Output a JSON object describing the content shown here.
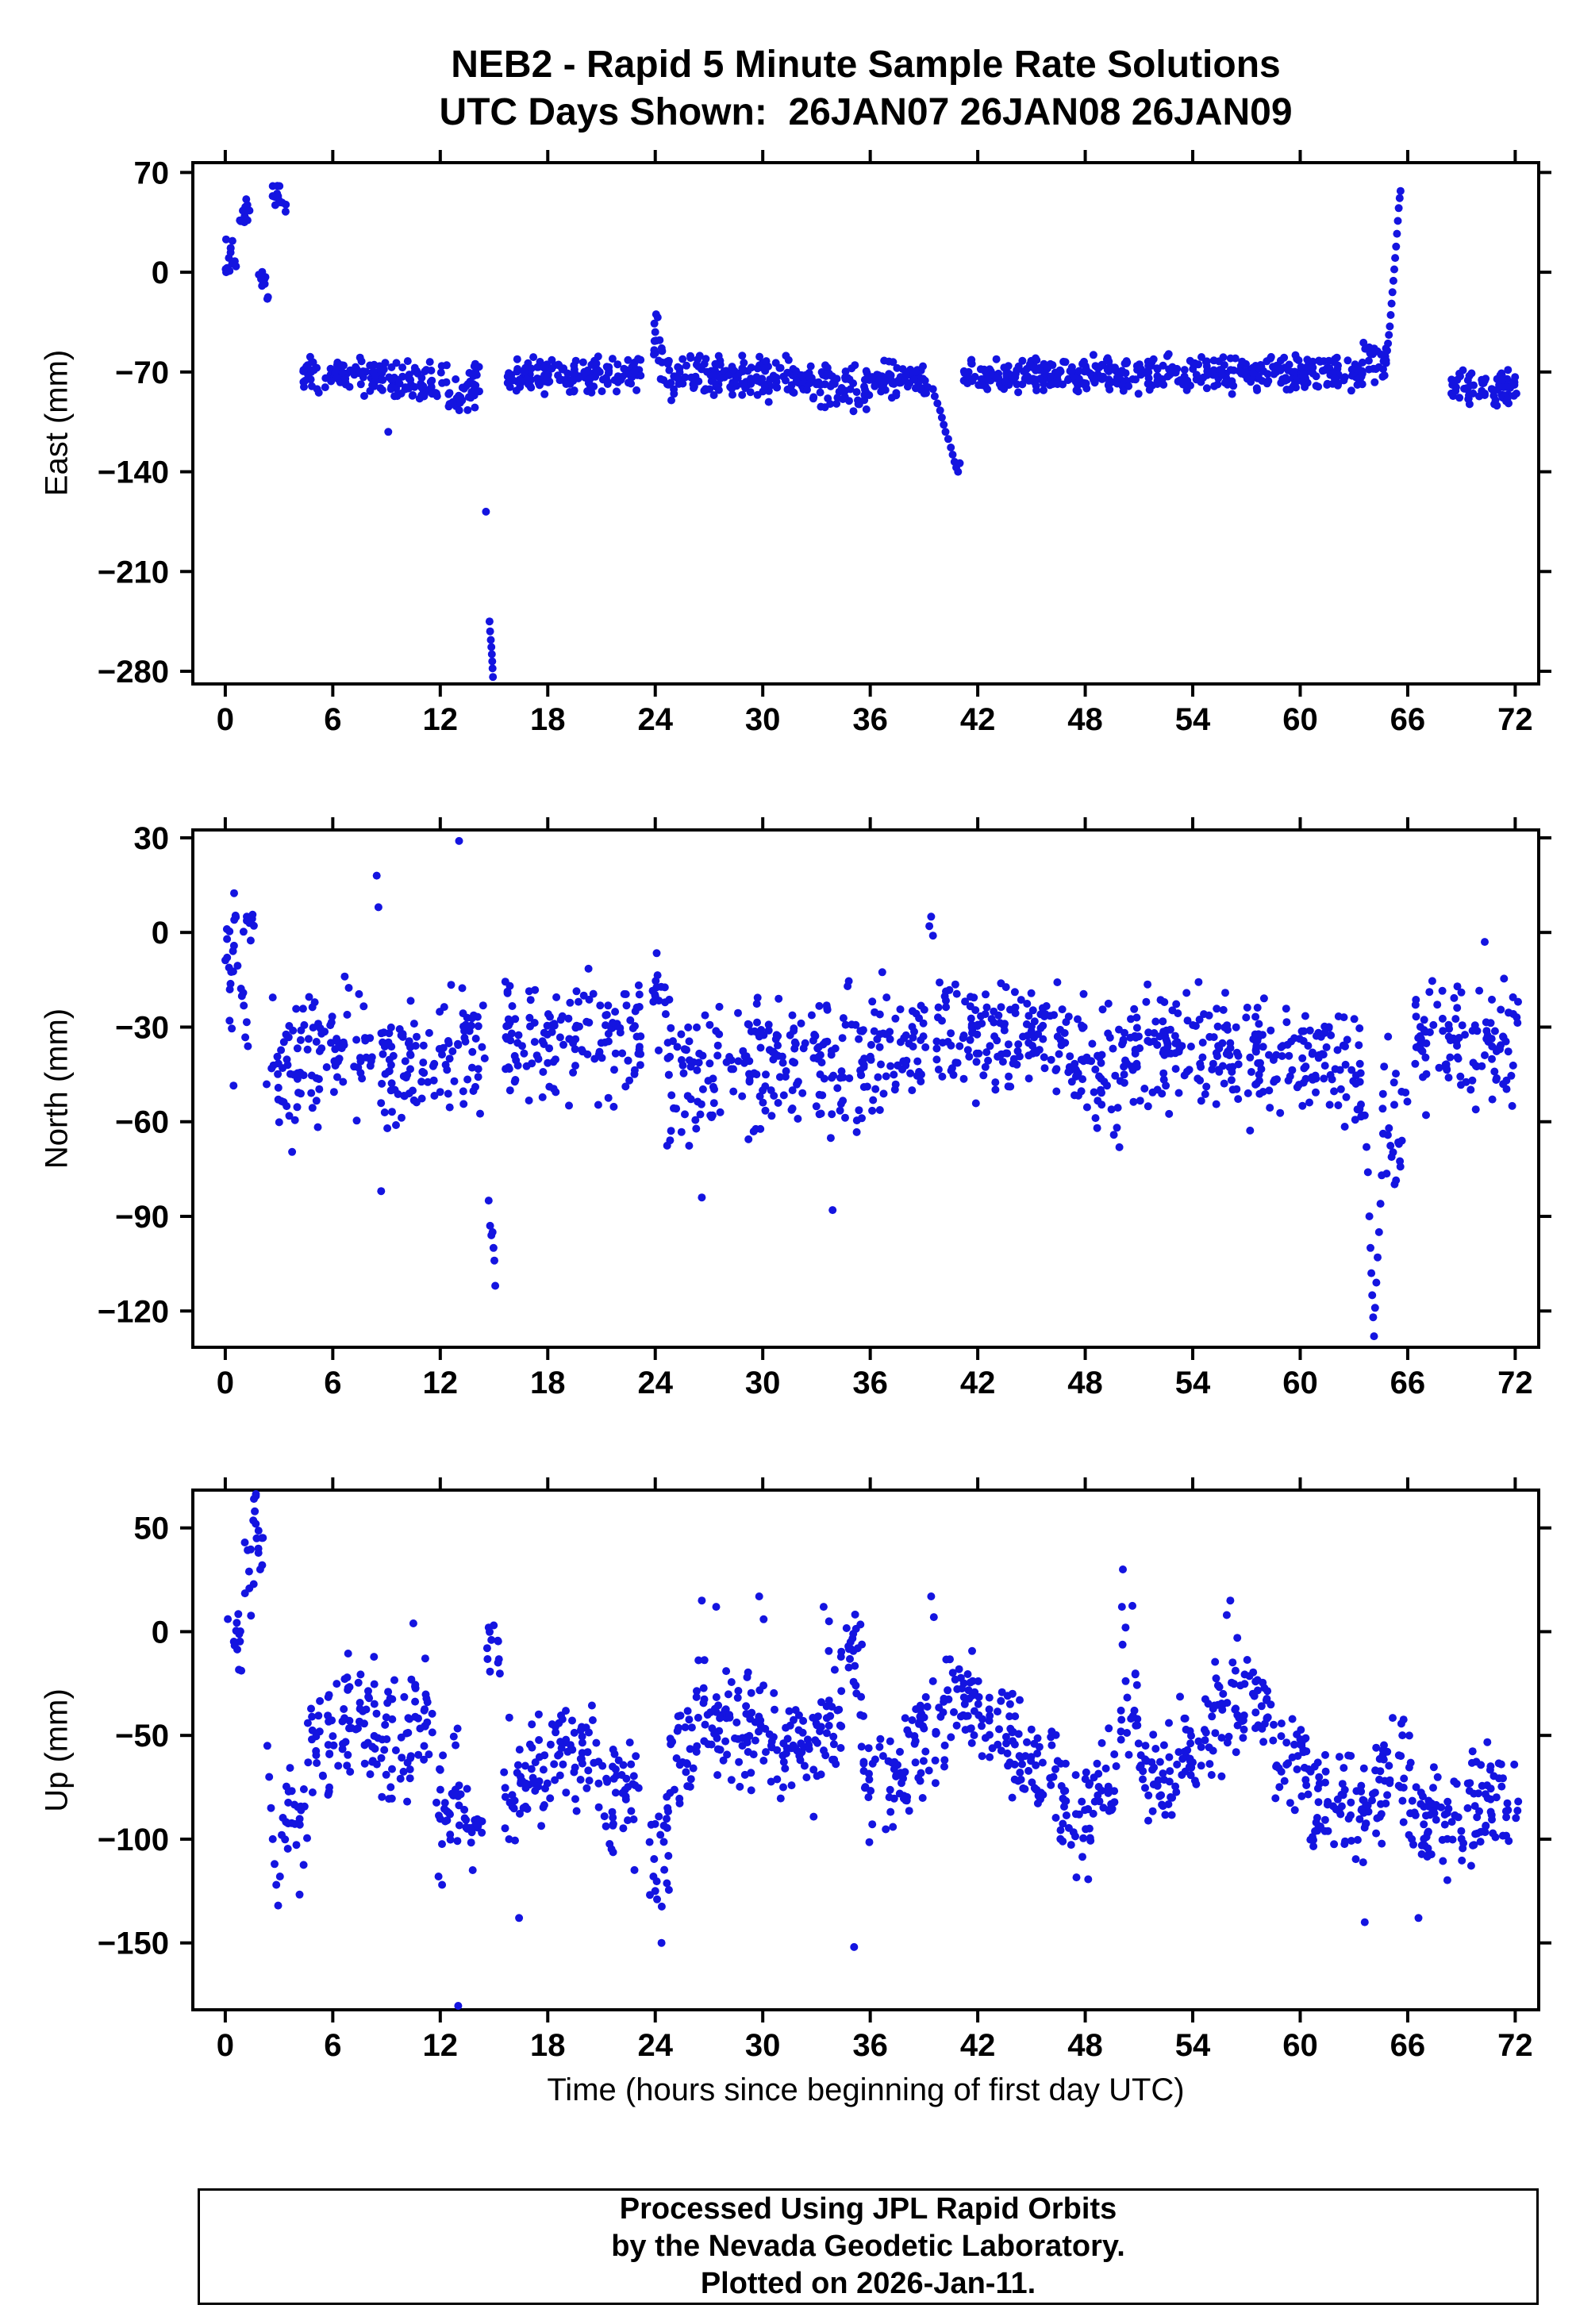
{
  "header": {
    "title_line1": "NEB2 - Rapid 5 Minute Sample Rate Solutions",
    "title_line2": "UTC Days Shown:  26JAN07 26JAN08 26JAN09"
  },
  "footer": {
    "line1": "Processed Using JPL Rapid Orbits",
    "line2": "by the Nevada Geodetic Laboratory.",
    "line3": "Plotted on 2026-Jan-11."
  },
  "chart_data": {
    "type": "scatter",
    "title": "NEB2 - Rapid 5 Minute Sample Rate Solutions",
    "subtitle": "UTC Days Shown:  26JAN07 26JAN08 26JAN09",
    "xlabel": "Time (hours since beginning of first day UTC)",
    "x_ticks": [
      0,
      6,
      12,
      18,
      24,
      30,
      36,
      42,
      48,
      54,
      60,
      66,
      72
    ],
    "xlim": [
      -1.9,
      73.4
    ],
    "grid": false,
    "legend": false,
    "point_color": "#1414E0",
    "frame_color": "#000000",
    "marker_radius_px": 5,
    "panels": [
      {
        "id": "east",
        "ylabel": "East (mm)",
        "ylim": [
          -290,
          78
        ],
        "y_ticks": [
          70,
          0,
          -70,
          -140,
          -210,
          -280
        ],
        "segments": [
          [
            0.0,
            0.6,
            8,
            8,
            7
          ],
          [
            0.8,
            1.4,
            12,
            40,
            6
          ],
          [
            1.8,
            2.4,
            10,
            -8,
            6
          ],
          [
            2.4,
            3.4,
            14,
            55,
            8
          ],
          [
            4.3,
            9.0,
            90,
            -72,
            6
          ],
          [
            9.0,
            12.3,
            60,
            -74,
            7
          ],
          [
            12.3,
            14.3,
            40,
            -84,
            9
          ],
          [
            15.6,
            23.2,
            140,
            -72,
            6
          ],
          [
            23.9,
            24.4,
            12,
            -52,
            13
          ],
          [
            24.4,
            28.0,
            70,
            -73,
            7
          ],
          [
            28.0,
            33.0,
            95,
            -76,
            7
          ],
          [
            33.0,
            36.0,
            60,
            -80,
            8
          ],
          [
            36.0,
            39.3,
            65,
            -75,
            6
          ],
          [
            41.2,
            47.0,
            110,
            -73,
            6
          ],
          [
            47.0,
            54.0,
            130,
            -72,
            6
          ],
          [
            54.0,
            60.0,
            115,
            -70,
            6
          ],
          [
            60.0,
            63.5,
            70,
            -71,
            6
          ],
          [
            63.5,
            64.8,
            26,
            -62,
            7
          ],
          [
            68.3,
            72.2,
            75,
            -80,
            6
          ]
        ],
        "points": [
          [
            0.05,
            0
          ],
          [
            0.1,
            3
          ],
          [
            0.2,
            10
          ],
          [
            0.3,
            17
          ],
          [
            0.4,
            22
          ],
          [
            9.1,
            -112
          ],
          [
            14.55,
            -168
          ],
          [
            14.75,
            -245
          ],
          [
            14.78,
            -252
          ],
          [
            14.82,
            -258
          ],
          [
            14.85,
            -263
          ],
          [
            14.88,
            -268
          ],
          [
            14.9,
            -273
          ],
          [
            14.92,
            -278
          ],
          [
            14.94,
            -284
          ],
          [
            23.95,
            -36
          ],
          [
            24.0,
            -42
          ],
          [
            24.05,
            -48
          ],
          [
            39.5,
            -82
          ],
          [
            39.6,
            -87
          ],
          [
            39.75,
            -92
          ],
          [
            39.9,
            -97
          ],
          [
            40.0,
            -102
          ],
          [
            40.1,
            -107
          ],
          [
            40.2,
            -112
          ],
          [
            40.35,
            -117
          ],
          [
            40.5,
            -123
          ],
          [
            40.6,
            -128
          ],
          [
            40.7,
            -133
          ],
          [
            40.8,
            -137
          ],
          [
            40.9,
            -140
          ],
          [
            41.0,
            -134
          ],
          [
            64.85,
            -55
          ],
          [
            64.9,
            -50
          ],
          [
            64.95,
            -44
          ],
          [
            65.0,
            -38
          ],
          [
            65.05,
            -30
          ],
          [
            65.1,
            -22
          ],
          [
            65.15,
            -14
          ],
          [
            65.2,
            -6
          ],
          [
            65.25,
            2
          ],
          [
            65.3,
            10
          ],
          [
            65.35,
            18
          ],
          [
            65.4,
            27
          ],
          [
            65.45,
            36
          ],
          [
            65.5,
            45
          ],
          [
            65.55,
            52
          ],
          [
            65.6,
            57
          ]
        ]
      },
      {
        "id": "north",
        "ylabel": "North (mm)",
        "ylim": [
          -132,
          33
        ],
        "y_ticks": [
          30,
          0,
          -30,
          -60,
          -90,
          -120
        ],
        "segments": [
          [
            0.0,
            0.6,
            10,
            -5,
            8
          ],
          [
            0.2,
            1.4,
            16,
            -22,
            14
          ],
          [
            1.0,
            1.6,
            6,
            2,
            3
          ],
          [
            2.2,
            4.2,
            34,
            -46,
            12
          ],
          [
            4.2,
            8.2,
            70,
            -38,
            9
          ],
          [
            8.6,
            12.6,
            75,
            -42,
            9
          ],
          [
            12.6,
            14.5,
            34,
            -36,
            9
          ],
          [
            15.5,
            19.0,
            65,
            -34,
            9
          ],
          [
            19.0,
            23.2,
            75,
            -33,
            9
          ],
          [
            23.8,
            24.6,
            14,
            -20,
            8
          ],
          [
            24.6,
            27.2,
            50,
            -46,
            11
          ],
          [
            27.2,
            33.2,
            110,
            -42,
            10
          ],
          [
            33.2,
            36.0,
            52,
            -42,
            12
          ],
          [
            36.0,
            39.2,
            60,
            -38,
            10
          ],
          [
            39.6,
            43.0,
            65,
            -33,
            9
          ],
          [
            43.0,
            47.0,
            75,
            -34,
            9
          ],
          [
            47.0,
            52.0,
            95,
            -42,
            11
          ],
          [
            52.0,
            57.0,
            95,
            -38,
            9
          ],
          [
            57.0,
            62.0,
            95,
            -40,
            9
          ],
          [
            62.0,
            63.5,
            28,
            -46,
            10
          ],
          [
            64.6,
            66.0,
            24,
            -60,
            12
          ],
          [
            66.4,
            69.5,
            55,
            -34,
            9
          ],
          [
            69.5,
            72.2,
            50,
            -36,
            9
          ]
        ],
        "points": [
          [
            0.5,
            4
          ],
          [
            1.2,
            5
          ],
          [
            1.35,
            3
          ],
          [
            8.45,
            18
          ],
          [
            8.55,
            8
          ],
          [
            8.7,
            -82
          ],
          [
            13.05,
            29
          ],
          [
            14.7,
            -85
          ],
          [
            14.78,
            -93
          ],
          [
            14.85,
            -96
          ],
          [
            14.92,
            -95
          ],
          [
            14.97,
            -100
          ],
          [
            15.02,
            -104
          ],
          [
            15.07,
            -112
          ],
          [
            26.6,
            -84
          ],
          [
            33.9,
            -88
          ],
          [
            39.3,
            2
          ],
          [
            39.4,
            5
          ],
          [
            39.5,
            -1
          ],
          [
            63.6,
            -58
          ],
          [
            63.7,
            -68
          ],
          [
            63.78,
            -76
          ],
          [
            63.86,
            -90
          ],
          [
            63.92,
            -100
          ],
          [
            63.97,
            -108
          ],
          [
            64.02,
            -115
          ],
          [
            64.07,
            -122
          ],
          [
            64.12,
            -128
          ],
          [
            64.18,
            -119
          ],
          [
            64.25,
            -111
          ],
          [
            64.32,
            -103
          ],
          [
            64.4,
            -95
          ],
          [
            64.48,
            -86
          ],
          [
            64.55,
            -77
          ],
          [
            70.3,
            -3
          ]
        ]
      },
      {
        "id": "up",
        "ylabel": "Up (mm)",
        "ylim": [
          -183,
          69
        ],
        "y_ticks": [
          50,
          0,
          -50,
          -100,
          -150
        ],
        "segments": [
          [
            0.1,
            0.9,
            12,
            -5,
            9
          ],
          [
            0.9,
            1.6,
            8,
            20,
            10
          ],
          [
            1.5,
            2.1,
            8,
            48,
            12
          ],
          [
            3.2,
            4.6,
            24,
            -95,
            14
          ],
          [
            4.6,
            6.2,
            30,
            -52,
            12
          ],
          [
            6.2,
            8.4,
            45,
            -42,
            14
          ],
          [
            8.4,
            10.4,
            38,
            -55,
            14
          ],
          [
            10.4,
            11.6,
            22,
            -35,
            15
          ],
          [
            11.6,
            13.4,
            32,
            -85,
            14
          ],
          [
            13.4,
            14.4,
            18,
            -95,
            10
          ],
          [
            14.6,
            15.4,
            10,
            -12,
            10
          ],
          [
            15.4,
            18.2,
            50,
            -75,
            14
          ],
          [
            18.2,
            21.0,
            50,
            -60,
            12
          ],
          [
            21.0,
            23.2,
            40,
            -80,
            14
          ],
          [
            23.6,
            24.8,
            22,
            -105,
            16
          ],
          [
            24.8,
            26.2,
            26,
            -60,
            14
          ],
          [
            26.2,
            28.4,
            42,
            -42,
            14
          ],
          [
            28.4,
            30.4,
            38,
            -48,
            14
          ],
          [
            30.4,
            32.4,
            38,
            -58,
            13
          ],
          [
            32.4,
            34.2,
            34,
            -48,
            16
          ],
          [
            34.2,
            35.6,
            26,
            -25,
            14
          ],
          [
            35.6,
            38.2,
            48,
            -72,
            14
          ],
          [
            38.2,
            40.2,
            38,
            -52,
            14
          ],
          [
            40.2,
            42.2,
            38,
            -35,
            12
          ],
          [
            42.2,
            44.4,
            40,
            -52,
            12
          ],
          [
            44.4,
            46.4,
            38,
            -65,
            13
          ],
          [
            46.4,
            48.4,
            38,
            -90,
            13
          ],
          [
            48.4,
            49.8,
            26,
            -72,
            13
          ],
          [
            49.8,
            51.0,
            20,
            -35,
            18
          ],
          [
            51.0,
            53.2,
            40,
            -70,
            13
          ],
          [
            53.2,
            55.2,
            36,
            -55,
            12
          ],
          [
            55.2,
            57.4,
            40,
            -35,
            13
          ],
          [
            57.4,
            58.6,
            22,
            -38,
            10
          ],
          [
            58.6,
            60.4,
            34,
            -62,
            13
          ],
          [
            60.4,
            62.4,
            38,
            -80,
            13
          ],
          [
            62.4,
            64.2,
            34,
            -88,
            14
          ],
          [
            64.2,
            66.2,
            38,
            -70,
            14
          ],
          [
            66.2,
            69.2,
            56,
            -92,
            13
          ],
          [
            69.2,
            72.2,
            56,
            -85,
            12
          ]
        ],
        "points": [
          [
            1.6,
            64
          ],
          [
            1.65,
            58
          ],
          [
            1.7,
            52
          ],
          [
            1.75,
            45
          ],
          [
            1.85,
            38
          ],
          [
            1.95,
            30
          ],
          [
            2.35,
            -55
          ],
          [
            2.45,
            -70
          ],
          [
            2.55,
            -85
          ],
          [
            2.65,
            -100
          ],
          [
            2.75,
            -112
          ],
          [
            2.85,
            -122
          ],
          [
            2.95,
            -132
          ],
          [
            3.05,
            -118
          ],
          [
            3.15,
            -98
          ],
          [
            10.5,
            4
          ],
          [
            11.9,
            -118
          ],
          [
            12.1,
            -122
          ],
          [
            13.0,
            -183
          ],
          [
            14.7,
            2
          ],
          [
            14.85,
            -4
          ],
          [
            16.4,
            -138
          ],
          [
            24.0,
            -125
          ],
          [
            24.35,
            -150
          ],
          [
            26.6,
            15
          ],
          [
            27.4,
            12
          ],
          [
            29.8,
            17
          ],
          [
            30.05,
            6
          ],
          [
            33.4,
            12
          ],
          [
            33.7,
            5
          ],
          [
            34.9,
            -5
          ],
          [
            35.05,
            -1
          ],
          [
            35.1,
            -152
          ],
          [
            35.3,
            -8
          ],
          [
            39.4,
            17
          ],
          [
            39.55,
            7
          ],
          [
            50.05,
            12
          ],
          [
            50.1,
            30
          ],
          [
            50.25,
            2
          ],
          [
            55.9,
            8
          ],
          [
            56.1,
            15
          ],
          [
            63.6,
            -140
          ],
          [
            66.6,
            -138
          ]
        ]
      }
    ]
  }
}
